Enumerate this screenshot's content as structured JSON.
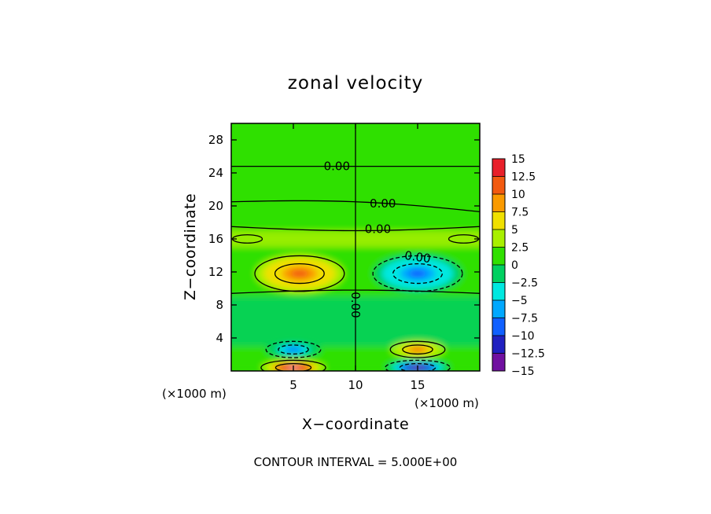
{
  "chart_data": {
    "type": "heatmap",
    "title": "zonal velocity",
    "xlabel": "X−coordinate",
    "ylabel": "Z−coordinate",
    "x_unit_label": "(×1000 m)",
    "y_unit_label": "(×1000 m)",
    "xlim": [
      0,
      20
    ],
    "ylim": [
      0,
      30
    ],
    "xticks": [
      5,
      10,
      15
    ],
    "xtick_labels": [
      "5",
      "10",
      "15"
    ],
    "yticks": [
      4,
      8,
      12,
      16,
      20,
      24,
      28
    ],
    "ytick_labels": [
      "4",
      "8",
      "12",
      "16",
      "20",
      "24",
      "28"
    ],
    "colorbar": {
      "levels": [
        15,
        12.5,
        10,
        7.5,
        5,
        2.5,
        0,
        -2.5,
        -5,
        -7.5,
        -10,
        -12.5,
        -15
      ],
      "labels": [
        "15",
        "12.5",
        "10",
        "7.5",
        "5",
        "2.5",
        "0",
        "−2.5",
        "−5",
        "−7.5",
        "−10",
        "−12.5",
        "−15"
      ],
      "colors": [
        "#f4a6a6",
        "#e8202a",
        "#f25a10",
        "#fa9a00",
        "#f0e000",
        "#a8f000",
        "#30e000",
        "#00d060",
        "#00e8e0",
        "#00a8ff",
        "#1060ff",
        "#2020c0",
        "#7010a0"
      ]
    },
    "contour_label": "0.00",
    "contour_interval_text": "CONTOUR INTERVAL = 5.000E+00",
    "features": [
      {
        "x": 5.5,
        "z": 11.5,
        "value": 9.5
      },
      {
        "x": 15.0,
        "z": 11.5,
        "value": -9.5
      },
      {
        "x": 5.0,
        "z": 2.5,
        "value": -9.0
      },
      {
        "x": 15.0,
        "z": 2.5,
        "value": 9.0
      },
      {
        "x": 5.0,
        "z": 0.3,
        "value": 15.0
      },
      {
        "x": 15.0,
        "z": 0.3,
        "value": -15.0
      }
    ],
    "zero_contours_z": [
      24.8,
      20.5,
      17.5,
      9.4
    ],
    "grid": false,
    "legend": "right"
  }
}
